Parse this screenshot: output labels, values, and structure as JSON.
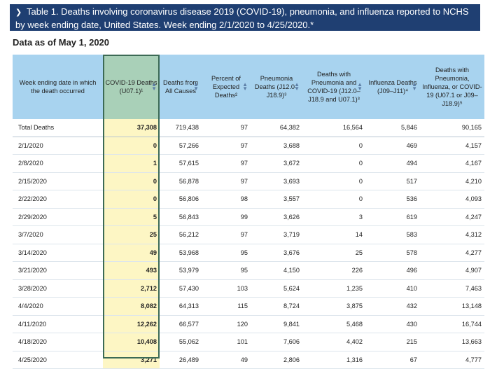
{
  "banner": {
    "chevron_icon": "chevron-down-icon",
    "title": "Table 1. Deaths involving coronavirus disease 2019 (COVID-19), pneumonia, and influenza reported to NCHS by week ending date, United States. Week ending 2/1/2020 to 4/25/2020.*"
  },
  "as_of": "Data as of May 1, 2020",
  "table": {
    "headers": [
      "Week ending date in which the death occurred",
      "COVID-19 Deaths (U07.1)¹",
      "Deaths from All Causes",
      "Percent of Expected Deaths²",
      "Pneumonia Deaths (J12.0–J18.9)³",
      "Deaths with Pneumonia and COVID-19 (J12.0–J18.9 and U07.1)³",
      "Influenza Deaths (J09–J11)⁴",
      "Deaths with Pneumonia, Influenza, or COVID-19 (U07.1 or J09–J18.9)⁵"
    ],
    "rows": [
      [
        "Total Deaths",
        "37,308",
        "719,438",
        "97",
        "64,382",
        "16,564",
        "5,846",
        "90,165"
      ],
      [
        "2/1/2020",
        "0",
        "57,266",
        "97",
        "3,688",
        "0",
        "469",
        "4,157"
      ],
      [
        "2/8/2020",
        "1",
        "57,615",
        "97",
        "3,672",
        "0",
        "494",
        "4,167"
      ],
      [
        "2/15/2020",
        "0",
        "56,878",
        "97",
        "3,693",
        "0",
        "517",
        "4,210"
      ],
      [
        "2/22/2020",
        "0",
        "56,806",
        "98",
        "3,557",
        "0",
        "536",
        "4,093"
      ],
      [
        "2/29/2020",
        "5",
        "56,843",
        "99",
        "3,626",
        "3",
        "619",
        "4,247"
      ],
      [
        "3/7/2020",
        "25",
        "56,212",
        "97",
        "3,719",
        "14",
        "583",
        "4,312"
      ],
      [
        "3/14/2020",
        "49",
        "53,968",
        "95",
        "3,676",
        "25",
        "578",
        "4,277"
      ],
      [
        "3/21/2020",
        "493",
        "53,979",
        "95",
        "4,150",
        "226",
        "496",
        "4,907"
      ],
      [
        "3/28/2020",
        "2,712",
        "57,430",
        "103",
        "5,624",
        "1,235",
        "410",
        "7,463"
      ],
      [
        "4/4/2020",
        "8,082",
        "64,313",
        "115",
        "8,724",
        "3,875",
        "432",
        "13,148"
      ],
      [
        "4/11/2020",
        "12,262",
        "66,577",
        "120",
        "9,841",
        "5,468",
        "430",
        "16,744"
      ],
      [
        "4/18/2020",
        "10,408",
        "55,062",
        "101",
        "7,606",
        "4,402",
        "215",
        "13,663"
      ],
      [
        "4/25/2020",
        "3,271",
        "26,489",
        "49",
        "2,806",
        "1,316",
        "67",
        "4,777"
      ]
    ]
  }
}
